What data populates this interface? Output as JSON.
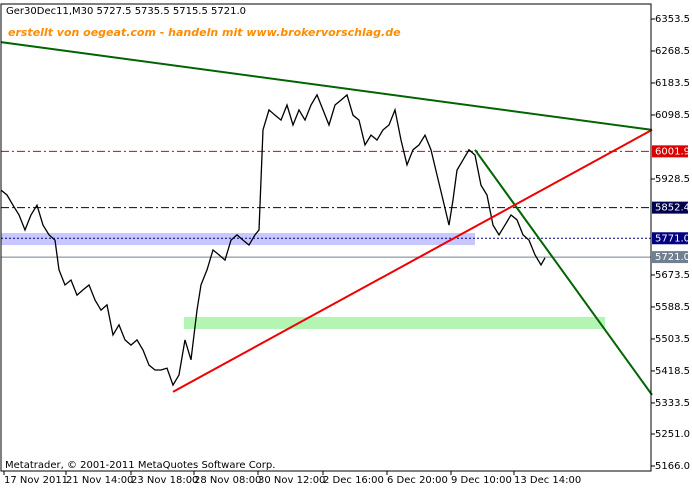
{
  "chart_data": {
    "type": "line",
    "title": "Ger30Dec11,M30  5727.5 5735.5 5715.5 5721.0",
    "annotation": "erstellt von oegeat.com - handeln mit www.brokervorschlag.de",
    "footer": "Metatrader, © 2001-2011 MetaQuotes Software Corp.",
    "x": [
      0,
      6,
      12,
      18,
      24,
      30,
      36,
      42,
      48,
      54,
      58,
      64,
      70,
      76,
      82,
      88,
      94,
      100,
      106,
      112,
      118,
      124,
      130,
      136,
      142,
      148,
      154,
      160,
      166,
      172,
      178,
      184,
      190,
      196,
      200,
      206,
      212,
      218,
      224,
      230,
      236,
      242,
      248,
      254,
      258,
      262,
      268,
      274,
      280,
      286,
      292,
      298,
      304,
      310,
      316,
      322,
      328,
      334,
      340,
      346,
      352,
      358,
      364,
      370,
      376,
      382,
      388,
      394,
      400,
      406,
      412,
      418,
      424,
      430,
      436,
      442,
      448,
      452,
      456,
      462,
      468,
      474,
      480,
      486,
      492,
      498,
      504,
      510,
      516,
      522,
      528,
      534,
      540,
      544
    ],
    "series": [
      {
        "color": "#000000",
        "values": [
          5899,
          5886,
          5859,
          5833,
          5793,
          5833,
          5859,
          5806,
          5780,
          5766,
          5687,
          5647,
          5660,
          5620,
          5634,
          5647,
          5607,
          5580,
          5594,
          5514,
          5541,
          5501,
          5487,
          5501,
          5474,
          5434,
          5421,
          5421,
          5426,
          5381,
          5408,
          5501,
          5448,
          5580,
          5647,
          5687,
          5740,
          5727,
          5713,
          5766,
          5780,
          5766,
          5753,
          5780,
          5793,
          6059,
          6112,
          6098,
          6085,
          6125,
          6072,
          6112,
          6085,
          6125,
          6152,
          6112,
          6072,
          6125,
          6138,
          6152,
          6098,
          6085,
          6019,
          6045,
          6032,
          6059,
          6072,
          6112,
          6032,
          5966,
          6006,
          6019,
          6045,
          6006,
          5939,
          5873,
          5806,
          5873,
          5952,
          5979,
          6006,
          5992,
          5912,
          5886,
          5806,
          5780,
          5806,
          5833,
          5820,
          5780,
          5766,
          5727,
          5700,
          5719
        ]
      }
    ],
    "xlim": [
      0,
      650
    ],
    "ylim": [
      5152.7,
      6393.4
    ],
    "xticks": [
      {
        "value": 3,
        "label": "17 Nov 2011"
      },
      {
        "value": 65,
        "label": "21 Nov 14:00"
      },
      {
        "value": 130,
        "label": "23 Nov 18:00"
      },
      {
        "value": 193,
        "label": "28 Nov 08:00"
      },
      {
        "value": 257,
        "label": "30 Nov 12:00"
      },
      {
        "value": 322,
        "label": "2 Dec 16:00"
      },
      {
        "value": 386,
        "label": "6 Dec 20:00"
      },
      {
        "value": 450,
        "label": "9 Dec 10:00"
      },
      {
        "value": 513,
        "label": "13 Dec 14:00"
      }
    ],
    "yticks": [
      6353.5,
      6268.5,
      6183.5,
      6098.5,
      5928.5,
      5673.5,
      5588.5,
      5503.5,
      5418.5,
      5333.5,
      {
        "value": 5251,
        "label": "5251.0"
      },
      {
        "value": 5166,
        "label": "5166.0"
      }
    ],
    "levels": [
      {
        "value": 6001.9,
        "color": "#dd0000",
        "dash": "8,3,2,3"
      },
      {
        "value": 5852.4,
        "color": "#000050",
        "dash": "8,3,2,3"
      },
      {
        "value": 5771,
        "label": "5771.0",
        "color": "#000080",
        "dash": "2,2"
      },
      {
        "value": 5721,
        "label": "5721.0",
        "color": "#708090",
        "dash": ""
      }
    ],
    "zones": [
      {
        "x": [
          0,
          474
        ],
        "y": [
          5753,
          5785
        ],
        "color": "#c8c8ff"
      },
      {
        "x": [
          183,
          604
        ],
        "y": [
          5530,
          5562
        ],
        "color": "#b4f5b4"
      }
    ],
    "trendlines": [
      {
        "x": [
          0,
          651
        ],
        "y": [
          6292,
          6059
        ],
        "color": "#006400"
      },
      {
        "x": [
          474,
          651
        ],
        "y": [
          6006,
          5355
        ],
        "color": "#006400"
      },
      {
        "x": [
          172,
          651
        ],
        "y": [
          5363,
          6059
        ],
        "color": "#ee0000"
      }
    ]
  }
}
